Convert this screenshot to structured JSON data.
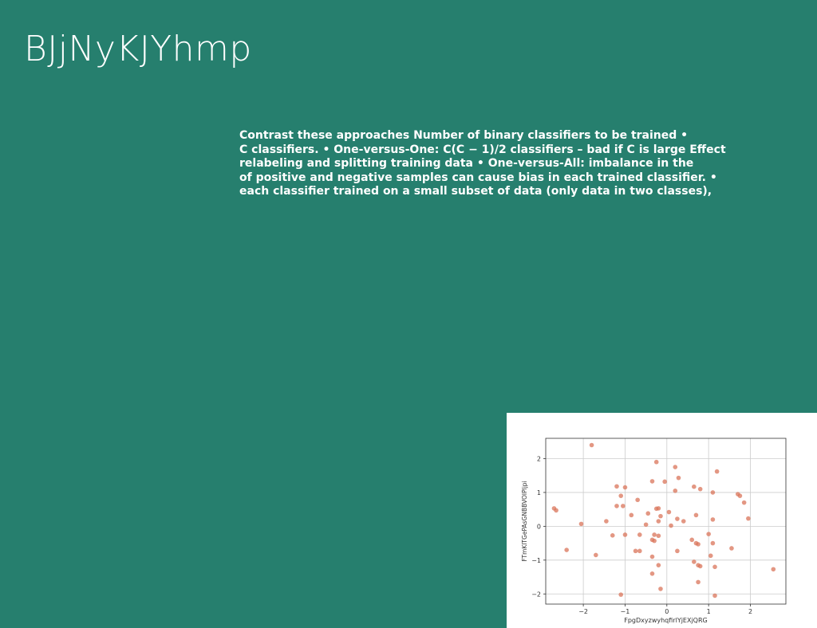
{
  "slide": {
    "title": "BJjNyKJYhmp",
    "body_lines": [
      "Contrast these approaches Number of binary classifiers to be trained •",
      "C classifiers. • One-versus-One: C(C − 1)/2 classifiers – bad if C is large Effect",
      "relabeling and splitting training data • One-versus-All: imbalance in the",
      "of positive and negative samples can cause bias in each trained classifier. •",
      "each classifier trained on a small subset of data (only data in two classes),"
    ]
  },
  "chart_data": {
    "type": "scatter",
    "title": "",
    "xlabel": "FpgDxyzwyhqfirlYjEXjQRG",
    "ylabel": "FTmKlTGePAsGNBBVOIPljpi",
    "xlim": [
      -2.9,
      2.85
    ],
    "ylim": [
      -2.3,
      2.6
    ],
    "xticks": [
      -2,
      -1,
      0,
      1,
      2
    ],
    "yticks": [
      -2,
      -1,
      0,
      1,
      2
    ],
    "grid": true,
    "marker_color": "#D9745A",
    "points": [
      [
        -1.8,
        2.4
      ],
      [
        -0.25,
        1.9
      ],
      [
        0.2,
        1.75
      ],
      [
        1.2,
        1.62
      ],
      [
        -1.2,
        1.18
      ],
      [
        -1.0,
        1.15
      ],
      [
        -0.35,
        1.33
      ],
      [
        -0.05,
        1.32
      ],
      [
        0.28,
        1.43
      ],
      [
        0.2,
        1.05
      ],
      [
        0.65,
        1.17
      ],
      [
        0.8,
        1.1
      ],
      [
        1.1,
        1.0
      ],
      [
        1.7,
        0.95
      ],
      [
        1.75,
        0.9
      ],
      [
        -1.1,
        0.9
      ],
      [
        -0.7,
        0.78
      ],
      [
        1.85,
        0.7
      ],
      [
        -2.7,
        0.53
      ],
      [
        -2.65,
        0.47
      ],
      [
        -1.2,
        0.6
      ],
      [
        -1.05,
        0.6
      ],
      [
        -0.25,
        0.52
      ],
      [
        -0.2,
        0.53
      ],
      [
        -0.85,
        0.33
      ],
      [
        -0.45,
        0.38
      ],
      [
        -0.15,
        0.3
      ],
      [
        0.05,
        0.42
      ],
      [
        0.7,
        0.33
      ],
      [
        1.95,
        0.23
      ],
      [
        -1.45,
        0.15
      ],
      [
        -0.2,
        0.15
      ],
      [
        0.25,
        0.22
      ],
      [
        0.4,
        0.15
      ],
      [
        1.1,
        0.2
      ],
      [
        -2.05,
        0.07
      ],
      [
        -0.5,
        0.05
      ],
      [
        0.1,
        0.02
      ],
      [
        -1.3,
        -0.27
      ],
      [
        -1.0,
        -0.25
      ],
      [
        -0.65,
        -0.25
      ],
      [
        -0.3,
        -0.25
      ],
      [
        -0.2,
        -0.28
      ],
      [
        1.0,
        -0.23
      ],
      [
        -0.35,
        -0.4
      ],
      [
        -0.3,
        -0.43
      ],
      [
        0.6,
        -0.4
      ],
      [
        0.7,
        -0.5
      ],
      [
        0.75,
        -0.53
      ],
      [
        1.1,
        -0.5
      ],
      [
        -2.4,
        -0.7
      ],
      [
        -0.75,
        -0.73
      ],
      [
        -0.65,
        -0.73
      ],
      [
        0.25,
        -0.73
      ],
      [
        1.55,
        -0.65
      ],
      [
        -1.7,
        -0.85
      ],
      [
        -0.35,
        -0.9
      ],
      [
        1.05,
        -0.87
      ],
      [
        0.65,
        -1.05
      ],
      [
        0.75,
        -1.15
      ],
      [
        0.8,
        -1.18
      ],
      [
        1.15,
        -1.2
      ],
      [
        -0.2,
        -1.15
      ],
      [
        2.55,
        -1.27
      ],
      [
        -0.35,
        -1.4
      ],
      [
        0.75,
        -1.65
      ],
      [
        -0.15,
        -1.85
      ],
      [
        -1.1,
        -2.02
      ],
      [
        1.15,
        -2.05
      ]
    ]
  }
}
